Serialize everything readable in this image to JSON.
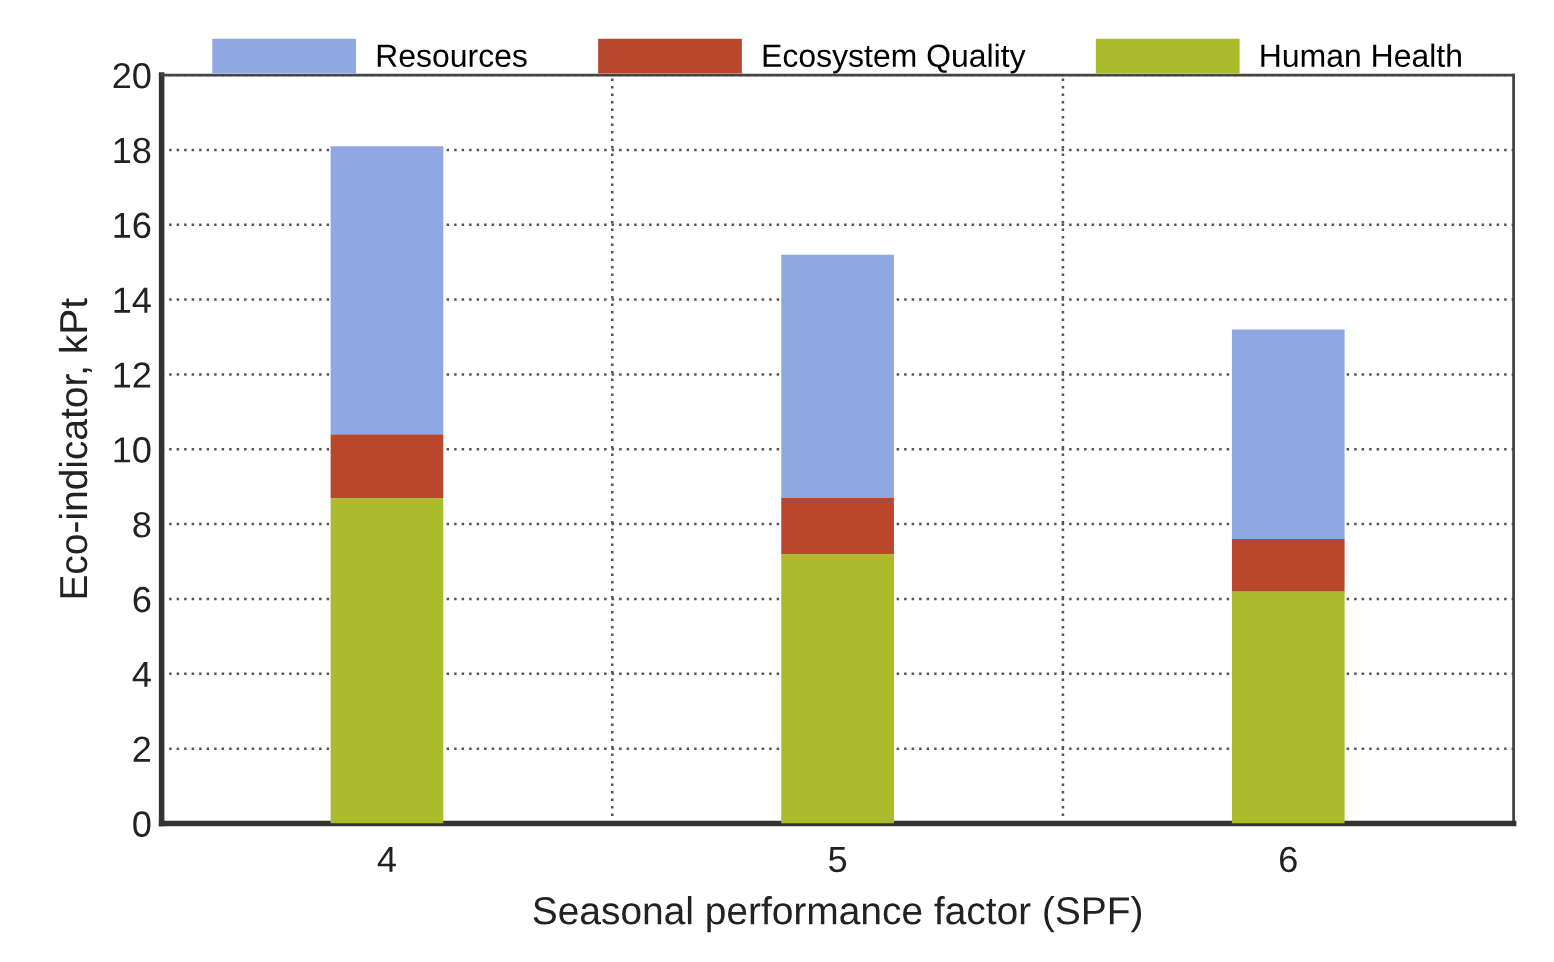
{
  "chart_data": {
    "type": "bar",
    "stacked": true,
    "xlabel": "Seasonal performance factor (SPF)",
    "ylabel": "Eco-indicator, kPt",
    "categories": [
      "4",
      "5",
      "6"
    ],
    "series": [
      {
        "name": "Human Health",
        "color": "#aabb2c",
        "values": [
          8.7,
          7.2,
          6.2
        ]
      },
      {
        "name": "Ecosystem Quality",
        "color": "#b8472c",
        "values": [
          1.7,
          1.5,
          1.4
        ]
      },
      {
        "name": "Resources",
        "color": "#8fa7e2",
        "values": [
          7.7,
          6.5,
          5.6
        ]
      }
    ],
    "ylim": [
      0,
      20
    ],
    "yticks": [
      0,
      2,
      4,
      6,
      8,
      10,
      12,
      14,
      16,
      18,
      20
    ],
    "grid": true,
    "legend": "top"
  }
}
